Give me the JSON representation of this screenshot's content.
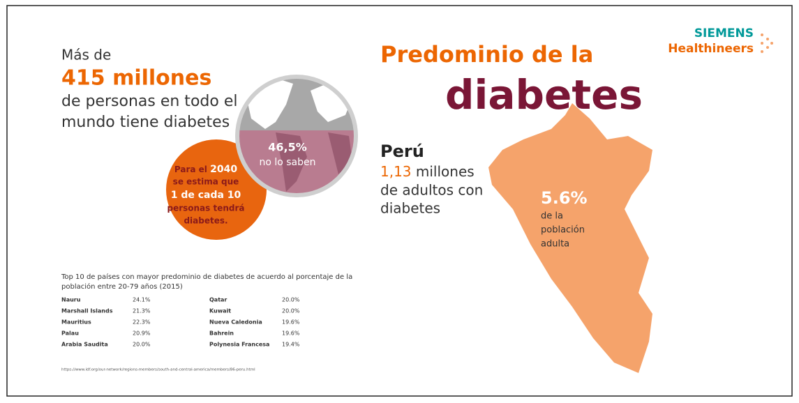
{
  "header": {
    "title_line1": "Predominio de la",
    "title_line2": "diabetes",
    "logo": [
      "SIEMENS",
      "Healthineers"
    ]
  },
  "world": {
    "lines": [
      "Más de",
      "415 millones",
      "de personas en todo el",
      "mundo tiene diabetes"
    ]
  },
  "globe": {
    "value": "46,5%",
    "label": "no lo saben"
  },
  "forecast": {
    "lines": [
      "Para el",
      "2040",
      "se estima que",
      "1 de cada 10",
      "personas tendrá",
      "diabetes."
    ]
  },
  "peru": {
    "name": "Perú",
    "value": "1,13",
    "unit": "millones",
    "lines": [
      "de adultos con",
      "diabetes"
    ]
  },
  "map": {
    "value": "5.6%",
    "lines": [
      "de la",
      "población",
      "adulta"
    ]
  },
  "table": {
    "caption": [
      "Top 10 de países con mayor predominio de diabetes de acuerdo al porcentaje de la",
      "población entre 20-79 años (2015)"
    ],
    "rows": [
      [
        "Nauru",
        "24.1%",
        "Qatar",
        "20.0%"
      ],
      [
        "Marshall Islands",
        "21.3%",
        "Kuwait",
        "20.0%"
      ],
      [
        "Mauritius",
        "22.3%",
        "Nueva Caledonia",
        "19.6%"
      ],
      [
        "Palau",
        "20.9%",
        "Bahrein",
        "19.6%"
      ],
      [
        "Arabia Saudita",
        "20.0%",
        "Polynesia Francesa",
        "19.4%"
      ]
    ],
    "source": "https://www.idf.org/our-network/regions-members/south-and-central-america/members/86-peru.html"
  }
}
